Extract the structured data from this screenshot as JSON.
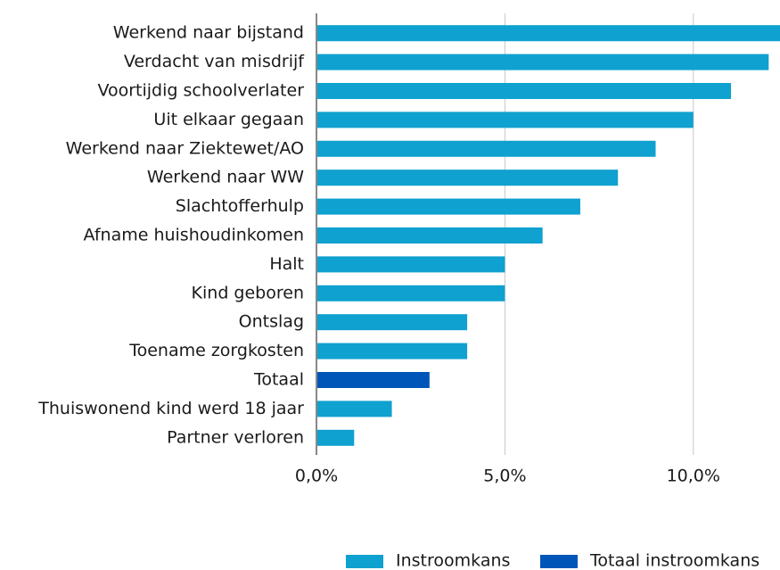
{
  "chart_data": {
    "type": "hbar",
    "categories": [
      "Werkend naar bijstand",
      "Verdacht van misdrijf",
      "Voortijdig schoolverlater",
      "Uit elkaar gegaan",
      "Werkend naar Ziektewet/AO",
      "Werkend naar WW",
      "Slachtofferhulp",
      "Afname huishoudinkomen",
      "Halt",
      "Kind geboren",
      "Ontslag",
      "Toename zorgkosten",
      "Totaal",
      "Thuiswonend kind werd 18 jaar",
      "Partner verloren"
    ],
    "series": [
      {
        "name": "Instroomkans",
        "color": "#0fa1cf",
        "values": [
          12.3,
          12,
          11,
          10,
          9,
          8,
          7,
          6,
          5,
          5,
          4,
          4,
          null,
          2,
          1
        ]
      },
      {
        "name": "Totaal instroomkans",
        "color": "#0056b8",
        "values": [
          null,
          null,
          null,
          null,
          null,
          null,
          null,
          null,
          null,
          null,
          null,
          null,
          3,
          null,
          null
        ]
      }
    ],
    "xlim": [
      0,
      12.3
    ],
    "xticks": [
      {
        "value": 0,
        "label": "0,0%"
      },
      {
        "value": 5,
        "label": "5,0%"
      },
      {
        "value": 10,
        "label": "10,0%"
      }
    ],
    "grid": true
  }
}
